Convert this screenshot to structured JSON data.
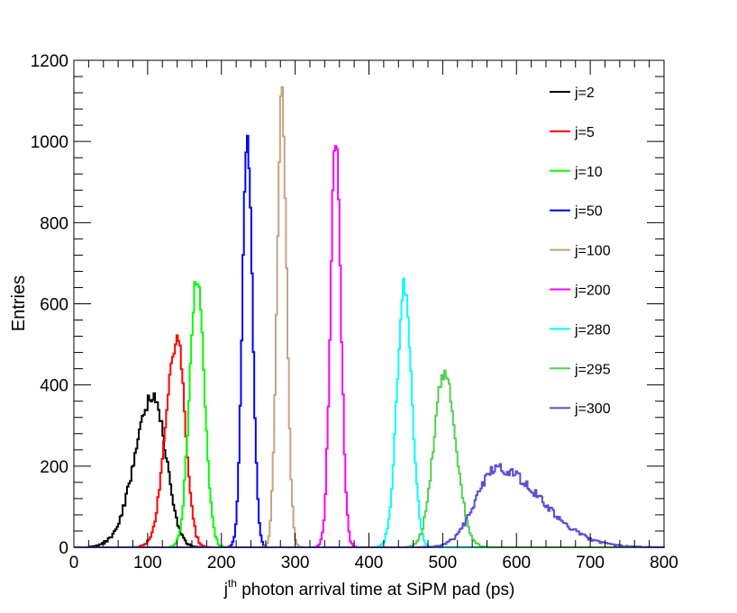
{
  "chart_data": {
    "type": "histogram",
    "xlabel": {
      "prefix": "j",
      "superscript": "th",
      "rest": " photon arrival time at SiPM pad (ps)"
    },
    "ylabel": "Entries",
    "xlim": [
      0,
      800
    ],
    "ylim": [
      0,
      1200
    ],
    "x_ticks": [
      "0",
      "100",
      "200",
      "300",
      "400",
      "500",
      "600",
      "700",
      "800"
    ],
    "y_ticks": [
      "0",
      "200",
      "400",
      "600",
      "800",
      "1000",
      "1200"
    ],
    "legend_position": "top-right",
    "series": [
      {
        "name": "j=2",
        "color": "#000000",
        "peak_x": 108,
        "peak_y": 375,
        "sigma_left": 25,
        "sigma_right": 17
      },
      {
        "name": "j=5",
        "color": "#ff0000",
        "peak_x": 140,
        "peak_y": 515,
        "sigma_left": 15,
        "sigma_right": 11
      },
      {
        "name": "j=10",
        "color": "#00ff00",
        "peak_x": 167,
        "peak_y": 665,
        "sigma_left": 10,
        "sigma_right": 10
      },
      {
        "name": "j=50",
        "color": "#0000ff",
        "peak_x": 235,
        "peak_y": 1015,
        "sigma_left": 6.5,
        "sigma_right": 7
      },
      {
        "name": "j=100",
        "color": "#c4a484",
        "peak_x": 282,
        "peak_y": 1120,
        "sigma_left": 6.5,
        "sigma_right": 6.5
      },
      {
        "name": "j=200",
        "color": "#ff00ff",
        "peak_x": 355,
        "peak_y": 1008,
        "sigma_left": 7,
        "sigma_right": 7
      },
      {
        "name": "j=280",
        "color": "#00ffff",
        "peak_x": 448,
        "peak_y": 645,
        "sigma_left": 10,
        "sigma_right": 10
      },
      {
        "name": "j=295",
        "color": "#52d152",
        "peak_x": 502,
        "peak_y": 430,
        "sigma_left": 14,
        "sigma_right": 16
      },
      {
        "name": "j=300",
        "color": "#5a50d0",
        "peak_x": 573,
        "peak_y": 195,
        "sigma_left": 28,
        "sigma_right": 60
      }
    ]
  }
}
